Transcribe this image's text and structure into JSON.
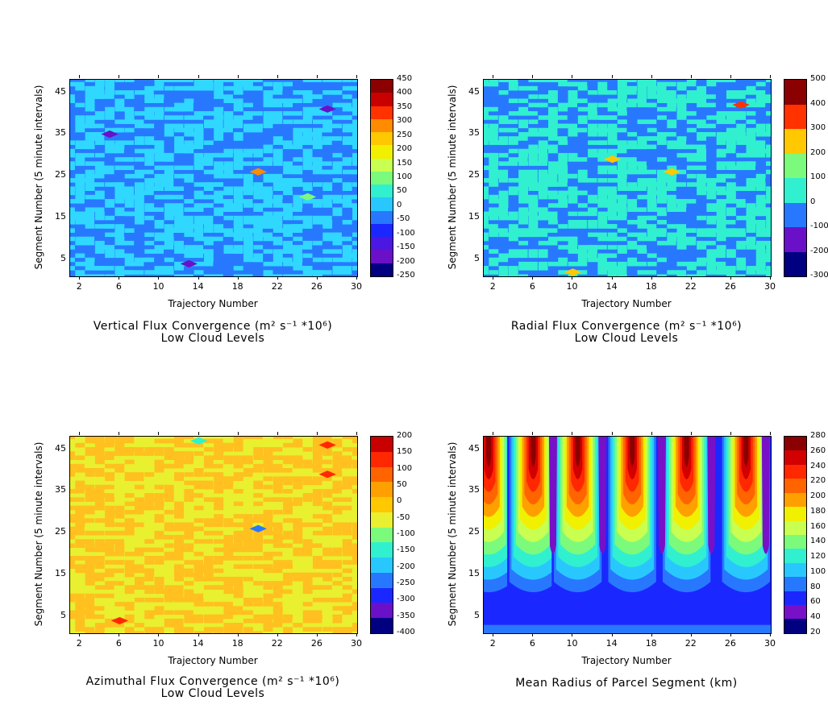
{
  "chart_data": [
    {
      "type": "heatmap",
      "title": "Vertical Flux Convergence (m² s⁻¹ *10⁶)",
      "subtitle": "Low Cloud Levels",
      "xlabel": "Trajectory Number",
      "ylabel": "Segment Number (5 minute intervals)",
      "xlim": [
        1,
        30
      ],
      "ylim": [
        1,
        48
      ],
      "xticks": [
        "2",
        "6",
        "10",
        "14",
        "18",
        "22",
        "26",
        "30"
      ],
      "yticks": [
        "5",
        "15",
        "25",
        "35",
        "45"
      ],
      "colorbar": {
        "labels": [
          "450",
          "400",
          "350",
          "300",
          "250",
          "200",
          "150",
          "100",
          "50",
          "0",
          "-50",
          "-100",
          "-150",
          "-200",
          "-250"
        ],
        "colors": [
          "#8b0000",
          "#c80000",
          "#ff3200",
          "#ff8c00",
          "#ffc800",
          "#f0f000",
          "#c8ff50",
          "#7cfa7c",
          "#30f0d0",
          "#28c8ff",
          "#2878ff",
          "#1a28ff",
          "#4a18e0",
          "#6a10c8",
          "#000080"
        ]
      },
      "base_color": "#2878ff",
      "alt_color": "#30d8ff",
      "hotspots": [
        {
          "x": 20,
          "y": 26,
          "level": 300
        },
        {
          "x": 27,
          "y": 41,
          "level": -200
        },
        {
          "x": 5,
          "y": 35,
          "level": -200
        },
        {
          "x": 13,
          "y": 4,
          "level": -200
        },
        {
          "x": 25,
          "y": 20,
          "level": 100
        }
      ]
    },
    {
      "type": "heatmap",
      "title": "Radial Flux Convergence (m² s⁻¹ *10⁶)",
      "subtitle": "Low Cloud Levels",
      "xlabel": "Trajectory Number",
      "ylabel": "Segment Number (5 minute intervals)",
      "xlim": [
        1,
        30
      ],
      "ylim": [
        1,
        48
      ],
      "xticks": [
        "2",
        "6",
        "10",
        "14",
        "18",
        "22",
        "26",
        "30"
      ],
      "yticks": [
        "5",
        "15",
        "25",
        "35",
        "45"
      ],
      "colorbar": {
        "labels": [
          "500",
          "400",
          "300",
          "200",
          "100",
          "0",
          "-100",
          "-200",
          "-300"
        ],
        "colors": [
          "#8b0000",
          "#ff3200",
          "#ffc800",
          "#7cfa7c",
          "#30f0d0",
          "#2878ff",
          "#6a10c8",
          "#000080"
        ]
      },
      "base_color": "#2878ff",
      "alt_color": "#30f0d0",
      "hotspots": [
        {
          "x": 27,
          "y": 42,
          "level": 400
        },
        {
          "x": 20,
          "y": 26,
          "level": 250
        },
        {
          "x": 14,
          "y": 29,
          "level": 250
        },
        {
          "x": 10,
          "y": 2,
          "level": 250
        }
      ]
    },
    {
      "type": "heatmap",
      "title": "Azimuthal Flux Convergence (m² s⁻¹ *10⁶)",
      "subtitle": "Low Cloud Levels",
      "xlabel": "Trajectory Number",
      "ylabel": "Segment Number (5 minute intervals)",
      "xlim": [
        1,
        30
      ],
      "ylim": [
        1,
        48
      ],
      "xticks": [
        "2",
        "6",
        "10",
        "14",
        "18",
        "22",
        "26",
        "30"
      ],
      "yticks": [
        "5",
        "15",
        "25",
        "35",
        "45"
      ],
      "colorbar": {
        "labels": [
          "200",
          "150",
          "100",
          "50",
          "0",
          "-50",
          "-100",
          "-150",
          "-200",
          "-250",
          "-300",
          "-350",
          "-400"
        ],
        "colors": [
          "#c80000",
          "#ff2800",
          "#ff6400",
          "#ffa000",
          "#ffc800",
          "#e8f030",
          "#7cfa7c",
          "#30f0d0",
          "#28c8ff",
          "#2878ff",
          "#1a28ff",
          "#6a10c8",
          "#000080"
        ]
      },
      "base_color": "#e8f030",
      "alt_color": "#ffc020",
      "hotspots": [
        {
          "x": 27,
          "y": 46,
          "level": 150
        },
        {
          "x": 27,
          "y": 39,
          "level": 150
        },
        {
          "x": 20,
          "y": 26,
          "level": -250
        },
        {
          "x": 14,
          "y": 47,
          "level": -150
        },
        {
          "x": 6,
          "y": 4,
          "level": 150
        }
      ]
    },
    {
      "type": "heatmap",
      "title": "Mean Radius of Parcel Segment (km)",
      "subtitle": "",
      "xlabel": "Trajectory Number",
      "ylabel": "Segment Number (5 minute intervals)",
      "xlim": [
        1,
        30
      ],
      "ylim": [
        1,
        48
      ],
      "xticks": [
        "2",
        "6",
        "10",
        "14",
        "18",
        "22",
        "26",
        "30"
      ],
      "yticks": [
        "5",
        "15",
        "25",
        "35",
        "45"
      ],
      "colorbar": {
        "labels": [
          "280",
          "260",
          "240",
          "220",
          "200",
          "180",
          "160",
          "140",
          "120",
          "100",
          "80",
          "60",
          "40",
          "20"
        ],
        "colors": [
          "#8b0000",
          "#d20000",
          "#ff2800",
          "#ff6400",
          "#ffa000",
          "#f0f000",
          "#c8ff50",
          "#7cfa7c",
          "#30f0d0",
          "#28c8ff",
          "#2878ff",
          "#1a28ff",
          "#7810c8",
          "#000080"
        ]
      },
      "plume_centers": [
        1.5,
        6,
        10.5,
        16,
        21.5,
        27.5
      ],
      "plume_peak_km": 280,
      "background_km": 40
    }
  ]
}
